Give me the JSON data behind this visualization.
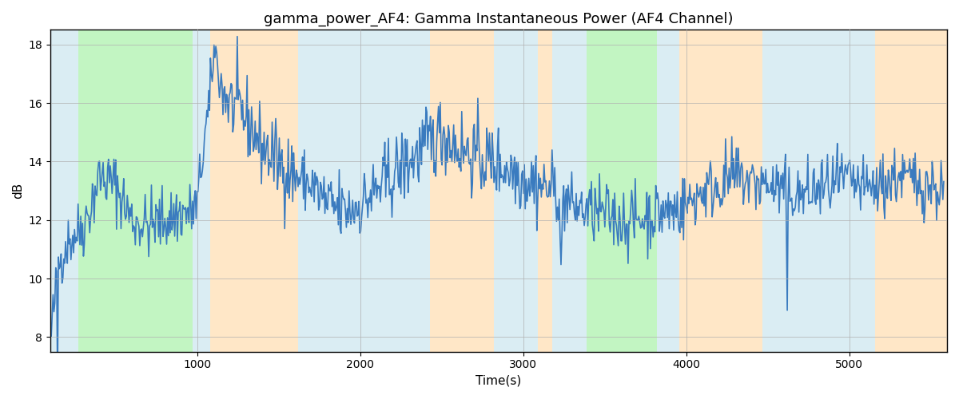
{
  "title": "gamma_power_AF4: Gamma Instantaneous Power (AF4 Channel)",
  "xlabel": "Time(s)",
  "ylabel": "dB",
  "ylim": [
    7.5,
    18.5
  ],
  "xlim": [
    100,
    5600
  ],
  "xticks": [
    1000,
    2000,
    3000,
    4000,
    5000
  ],
  "yticks": [
    8,
    10,
    12,
    14,
    16,
    18
  ],
  "line_color": "#3a7bbf",
  "line_width": 1.2,
  "bg_color": "#ffffff",
  "grid_color": "#b0b0b0",
  "bands": [
    {
      "start": 100,
      "end": 270,
      "color": "#add8e6",
      "alpha": 0.45
    },
    {
      "start": 270,
      "end": 970,
      "color": "#90ee90",
      "alpha": 0.55
    },
    {
      "start": 970,
      "end": 1080,
      "color": "#add8e6",
      "alpha": 0.45
    },
    {
      "start": 1080,
      "end": 1620,
      "color": "#ffd59a",
      "alpha": 0.55
    },
    {
      "start": 1620,
      "end": 2430,
      "color": "#add8e6",
      "alpha": 0.45
    },
    {
      "start": 2430,
      "end": 2820,
      "color": "#ffd59a",
      "alpha": 0.55
    },
    {
      "start": 2820,
      "end": 3090,
      "color": "#add8e6",
      "alpha": 0.45
    },
    {
      "start": 3090,
      "end": 3180,
      "color": "#ffd59a",
      "alpha": 0.55
    },
    {
      "start": 3180,
      "end": 3390,
      "color": "#add8e6",
      "alpha": 0.45
    },
    {
      "start": 3390,
      "end": 3820,
      "color": "#90ee90",
      "alpha": 0.55
    },
    {
      "start": 3820,
      "end": 3960,
      "color": "#add8e6",
      "alpha": 0.45
    },
    {
      "start": 3960,
      "end": 4470,
      "color": "#ffd59a",
      "alpha": 0.55
    },
    {
      "start": 4470,
      "end": 4760,
      "color": "#add8e6",
      "alpha": 0.45
    },
    {
      "start": 4760,
      "end": 5160,
      "color": "#add8e6",
      "alpha": 0.45
    },
    {
      "start": 5160,
      "end": 5600,
      "color": "#ffd59a",
      "alpha": 0.55
    }
  ],
  "seed": 42
}
